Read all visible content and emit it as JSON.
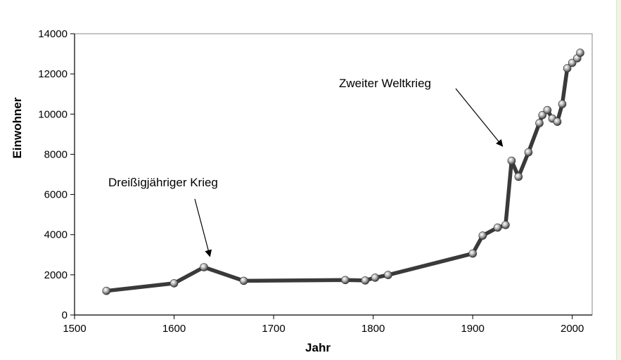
{
  "chart_data": {
    "type": "line",
    "title": "",
    "xlabel": "Jahr",
    "ylabel": "Einwohner",
    "xlim": [
      1500,
      2020
    ],
    "ylim": [
      0,
      14000
    ],
    "xticks": [
      1500,
      1600,
      1700,
      1800,
      1900,
      2000
    ],
    "yticks": [
      0,
      2000,
      4000,
      6000,
      8000,
      10000,
      12000,
      14000
    ],
    "grid": false,
    "legend": "none",
    "colors": {
      "line": "#3a3a3a",
      "marker": "#9a9a9a",
      "marker_edge": "#333333",
      "axis": "#000000"
    },
    "series": [
      {
        "x": [
          1532,
          1600,
          1630,
          1670,
          1772,
          1792,
          1802,
          1815,
          1900,
          1910,
          1925,
          1933,
          1939,
          1946,
          1956,
          1967,
          1970,
          1975,
          1980,
          1985,
          1990,
          1995,
          2000,
          2005,
          2008
        ],
        "y": [
          1200,
          1580,
          2380,
          1700,
          1740,
          1720,
          1860,
          1990,
          3060,
          3950,
          4350,
          4480,
          7680,
          6880,
          8100,
          9550,
          9950,
          10200,
          9780,
          9620,
          10500,
          12280,
          12550,
          12780,
          13050
        ]
      }
    ],
    "annotations": [
      {
        "text": "Dreißigjähriger Krieg",
        "target_x": 1636,
        "target_y": 2920
      },
      {
        "text": "Zweiter Weltkrieg",
        "target_x": 1930,
        "target_y": 8400
      }
    ]
  }
}
